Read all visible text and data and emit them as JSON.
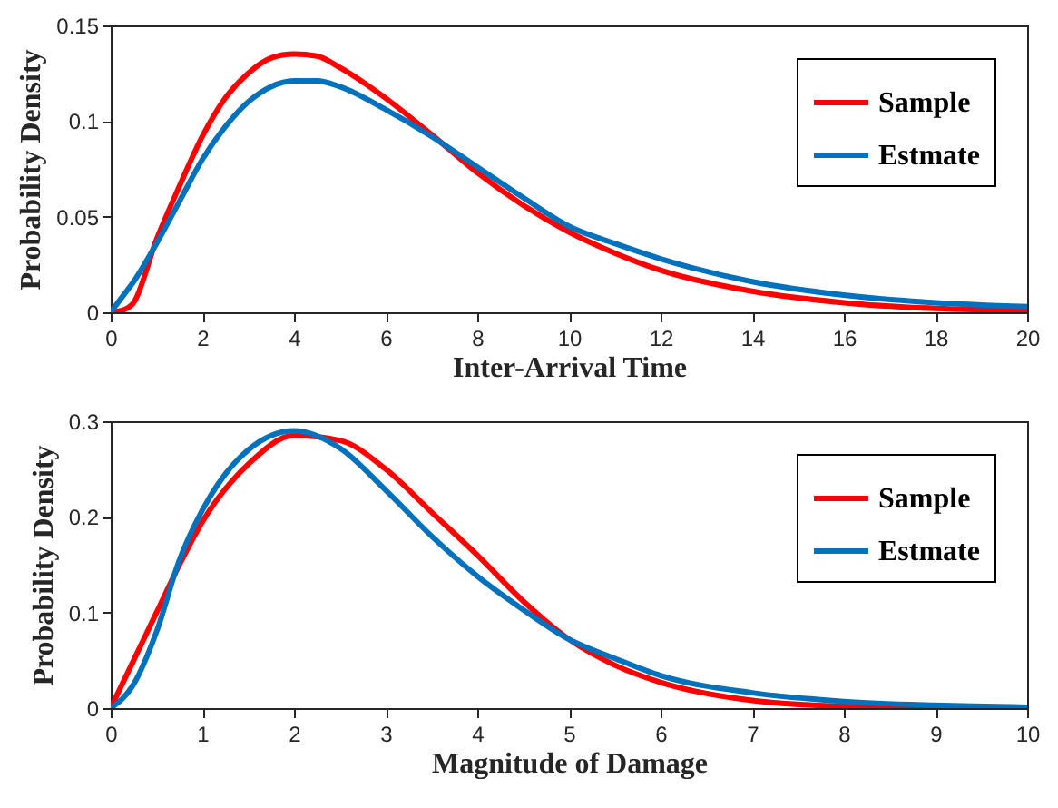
{
  "chart_data": [
    {
      "type": "line",
      "xlabel": "Inter-Arrival Time",
      "ylabel": "Probability Density",
      "legend": "top right",
      "xlim": [
        0,
        20
      ],
      "ylim": [
        0,
        0.15
      ],
      "xticks": [
        0,
        2,
        4,
        6,
        8,
        10,
        12,
        14,
        16,
        18,
        20
      ],
      "yticks": [
        0,
        0.05,
        {
          "value": 0.1,
          "label": "0.1"
        },
        0.15
      ],
      "x": [
        0,
        0.25,
        0.5,
        1,
        1.5,
        2,
        2.5,
        3,
        3.5,
        4,
        4.5,
        5,
        6,
        7,
        8,
        9,
        10,
        11,
        12,
        14,
        16,
        18,
        20
      ],
      "series": [
        {
          "name": "Sample",
          "color": "#ff0000",
          "values": [
            0,
            0.001,
            0.005,
            0.038,
            0.066,
            0.092,
            0.112,
            0.125,
            0.133,
            0.135,
            0.134,
            0.128,
            0.112,
            0.093,
            0.073,
            0.056,
            0.042,
            0.031,
            0.022,
            0.011,
            0.005,
            0.002,
            0.001
          ]
        },
        {
          "name": "Estmate",
          "color": "#0072bd",
          "values": [
            0,
            0.008,
            0.016,
            0.036,
            0.058,
            0.08,
            0.097,
            0.11,
            0.118,
            0.121,
            0.121,
            0.118,
            0.106,
            0.092,
            0.076,
            0.06,
            0.045,
            0.036,
            0.028,
            0.016,
            0.009,
            0.005,
            0.003
          ]
        }
      ]
    },
    {
      "type": "line",
      "xlabel": "Magnitude of Damage",
      "ylabel": "Probability Density",
      "legend": "top right",
      "xlim": [
        0,
        10
      ],
      "ylim": [
        0,
        0.3
      ],
      "xticks": [
        0,
        1,
        2,
        3,
        4,
        5,
        6,
        7,
        8,
        9,
        10
      ],
      "yticks": [
        0,
        0.1,
        0.2,
        0.3
      ],
      "x": [
        0,
        0.25,
        0.5,
        0.75,
        1,
        1.5,
        2,
        2.5,
        3,
        3.5,
        4,
        4.5,
        5,
        5.5,
        6,
        7,
        8,
        9,
        10
      ],
      "series": [
        {
          "name": "Sample",
          "color": "#ff0000",
          "values": [
            0,
            0.05,
            0.1,
            0.15,
            0.195,
            0.255,
            0.285,
            0.28,
            0.25,
            0.205,
            0.16,
            0.112,
            0.072,
            0.045,
            0.027,
            0.008,
            0.002,
            0.001,
            0
          ]
        },
        {
          "name": "Estmate",
          "color": "#0072bd",
          "values": [
            0,
            0.025,
            0.08,
            0.155,
            0.207,
            0.27,
            0.29,
            0.272,
            0.228,
            0.18,
            0.138,
            0.103,
            0.072,
            0.052,
            0.034,
            0.016,
            0.007,
            0.003,
            0.001
          ]
        }
      ]
    }
  ]
}
